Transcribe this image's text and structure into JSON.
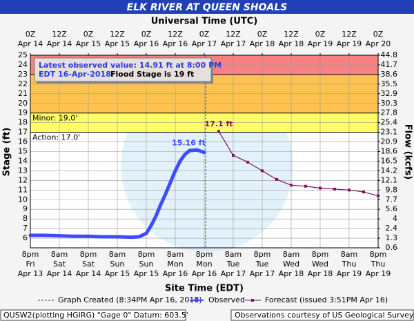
{
  "chart_data": {
    "type": "line",
    "title": "ELK RIVER AT QUEEN SHOALS",
    "top_axis_title": "Universal Time (UTC)",
    "x_axis_title": "Site Time (EDT)",
    "y_axis_title": "Stage (ft)",
    "y2_axis_title": "Flow (kcfs)",
    "xlim": [
      "2018-04-14T00:00Z",
      "2018-04-20T00:00Z"
    ],
    "ylim": [
      5,
      25
    ],
    "yticks": [
      6,
      7,
      8,
      9,
      10,
      11,
      12,
      13,
      14,
      15,
      16,
      17,
      18,
      19,
      20,
      21,
      22,
      23,
      24,
      25
    ],
    "y2ticks": [
      44.8,
      41.7,
      38.6,
      35.5,
      32.9,
      30.3,
      27.8,
      25.4,
      23.1,
      20.9,
      18.6,
      16.5,
      14.2,
      12.1,
      9.8,
      7.7,
      5.6,
      4.0,
      2.4,
      1.3,
      0.6
    ],
    "grid": true,
    "xticks": [
      {
        "value": "2018-04-14T00:00Z",
        "label": [
          "8pm",
          "Fri",
          "Apr 13"
        ]
      },
      {
        "value": "2018-04-14T12:00Z",
        "label": [
          "8am",
          "Sat",
          "Apr 14"
        ]
      },
      {
        "value": "2018-04-15T00:00Z",
        "label": [
          "8pm",
          "Sat",
          "Apr 14"
        ]
      },
      {
        "value": "2018-04-15T12:00Z",
        "label": [
          "8am",
          "Sun",
          "Apr 15"
        ]
      },
      {
        "value": "2018-04-16T00:00Z",
        "label": [
          "8pm",
          "Sun",
          "Apr 15"
        ]
      },
      {
        "value": "2018-04-16T12:00Z",
        "label": [
          "8am",
          "Mon",
          "Apr 16"
        ]
      },
      {
        "value": "2018-04-17T00:00Z",
        "label": [
          "8pm",
          "Mon",
          "Apr 16"
        ]
      },
      {
        "value": "2018-04-17T12:00Z",
        "label": [
          "8am",
          "Tue",
          "Apr 17"
        ]
      },
      {
        "value": "2018-04-18T00:00Z",
        "label": [
          "8pm",
          "Tue",
          "Apr 17"
        ]
      },
      {
        "value": "2018-04-18T12:00Z",
        "label": [
          "8am",
          "Wed",
          "Apr 18"
        ]
      },
      {
        "value": "2018-04-19T00:00Z",
        "label": [
          "8pm",
          "Wed",
          "Apr 18"
        ]
      },
      {
        "value": "2018-04-19T12:00Z",
        "label": [
          "8am",
          "Thu",
          "Apr 19"
        ]
      },
      {
        "value": "2018-04-20T00:00Z",
        "label": [
          "8pm",
          "Thu",
          "Apr 19"
        ]
      }
    ],
    "top_xticks": [
      {
        "value": "2018-04-14T00:00Z",
        "label": [
          "0Z",
          "Apr 14"
        ]
      },
      {
        "value": "2018-04-14T12:00Z",
        "label": [
          "12Z",
          "Apr 14"
        ]
      },
      {
        "value": "2018-04-15T00:00Z",
        "label": [
          "0Z",
          "Apr 15"
        ]
      },
      {
        "value": "2018-04-15T12:00Z",
        "label": [
          "12Z",
          "Apr 15"
        ]
      },
      {
        "value": "2018-04-16T00:00Z",
        "label": [
          "0Z",
          "Apr 16"
        ]
      },
      {
        "value": "2018-04-16T12:00Z",
        "label": [
          "12Z",
          "Apr 16"
        ]
      },
      {
        "value": "2018-04-17T00:00Z",
        "label": [
          "0Z",
          "Apr 17"
        ]
      },
      {
        "value": "2018-04-17T12:00Z",
        "label": [
          "12Z",
          "Apr 17"
        ]
      },
      {
        "value": "2018-04-18T00:00Z",
        "label": [
          "0Z",
          "Apr 18"
        ]
      },
      {
        "value": "2018-04-18T12:00Z",
        "label": [
          "12Z",
          "Apr 18"
        ]
      },
      {
        "value": "2018-04-19T00:00Z",
        "label": [
          "0Z",
          "Apr 19"
        ]
      },
      {
        "value": "2018-04-19T12:00Z",
        "label": [
          "12Z",
          "Apr 19"
        ]
      },
      {
        "value": "2018-04-20T00:00Z",
        "label": [
          "0Z",
          "Apr 20"
        ]
      }
    ],
    "flood_levels": [
      {
        "value": 23,
        "color": "#f88080"
      },
      {
        "value": 19,
        "label": "Minor: 19.0'",
        "color": "#ffc24f"
      },
      {
        "value": 17,
        "label": "Action: 17.0'",
        "color": "#ffff66"
      }
    ],
    "info_box": {
      "line1": "Latest observed value: 14.91 ft at 8:00 PM",
      "line2": "EDT 16-Apr-2018.",
      "line2b": "Flood Stage is 19 ft"
    },
    "created": {
      "x": "2018-04-17T00:34Z",
      "label": "Graph Created (8:34PM Apr 16, 2018)"
    },
    "series": [
      {
        "name": "Observed",
        "color": "#3d4cff",
        "x": [
          "2018-04-14T00:00Z",
          "2018-04-14T06:00Z",
          "2018-04-14T12:00Z",
          "2018-04-14T18:00Z",
          "2018-04-15T00:00Z",
          "2018-04-15T06:00Z",
          "2018-04-15T12:00Z",
          "2018-04-15T18:00Z",
          "2018-04-15T21:00Z",
          "2018-04-16T00:00Z",
          "2018-04-16T02:00Z",
          "2018-04-16T04:00Z",
          "2018-04-16T06:00Z",
          "2018-04-16T08:00Z",
          "2018-04-16T10:00Z",
          "2018-04-16T12:00Z",
          "2018-04-16T14:00Z",
          "2018-04-16T16:00Z",
          "2018-04-16T18:00Z",
          "2018-04-16T21:00Z",
          "2018-04-17T00:00Z"
        ],
        "values": [
          6.3,
          6.3,
          6.25,
          6.2,
          6.2,
          6.15,
          6.15,
          6.1,
          6.15,
          6.5,
          7.3,
          8.3,
          9.5,
          10.6,
          11.8,
          13.0,
          14.0,
          14.7,
          15.1,
          15.16,
          14.91
        ],
        "value_labels": [
          null,
          null,
          null,
          null,
          null,
          null,
          null,
          null,
          null,
          null,
          null,
          null,
          null,
          null,
          null,
          null,
          null,
          null,
          null,
          "15.16 ft",
          null
        ]
      },
      {
        "name": "Forecast (issued 3:51PM Apr 16)",
        "color": "#80105e",
        "x": [
          "2018-04-17T06:00Z",
          "2018-04-17T12:00Z",
          "2018-04-17T18:00Z",
          "2018-04-18T00:00Z",
          "2018-04-18T06:00Z",
          "2018-04-18T12:00Z",
          "2018-04-18T18:00Z",
          "2018-04-19T00:00Z",
          "2018-04-19T06:00Z",
          "2018-04-19T12:00Z",
          "2018-04-19T18:00Z",
          "2018-04-20T00:00Z"
        ],
        "values": [
          17.1,
          14.6,
          13.9,
          13.0,
          12.1,
          11.5,
          11.4,
          11.2,
          11.1,
          11.0,
          10.8,
          10.4
        ],
        "value_labels": [
          "17.1 ft",
          null,
          null,
          null,
          null,
          null,
          null,
          null,
          null,
          null,
          null,
          null
        ]
      }
    ],
    "footer_left": "QUSW2(plotting HGIRG) \"Gage 0\" Datum: 603.5'",
    "footer_right": "Observations courtesy of US Geological Survey"
  }
}
